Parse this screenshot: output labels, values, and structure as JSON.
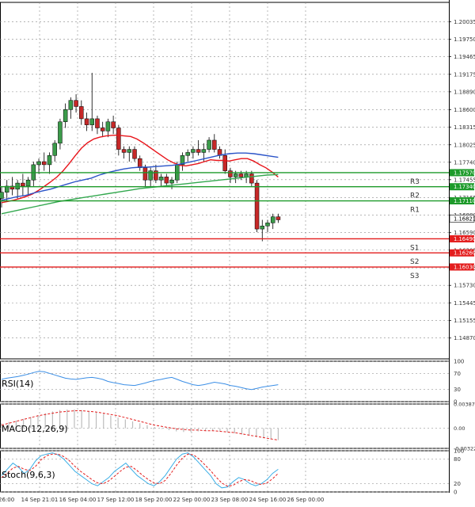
{
  "chart_data": [
    {
      "type": "candlestick",
      "title": "",
      "ylim": [
        1.1453,
        1.2035
      ],
      "price_ticks": [
        "1.20035",
        "1.19750",
        "1.19465",
        "1.19175",
        "1.18890",
        "1.18600",
        "1.18315",
        "1.18025",
        "1.17740",
        "1.17455",
        "1.17165",
        "1.16880",
        "1.16590",
        "1.16305",
        "1.16015",
        "1.15730",
        "1.15445",
        "1.15155",
        "1.14870"
      ],
      "x_labels": [
        "26:00",
        "14 Sep 21:01",
        "16 Sep 04:00",
        "17 Sep 12:00",
        "18 Sep 20:00",
        "22 Sep 00:00",
        "23 Sep 08:00",
        "24 Sep 16:00",
        "26 Sep 00:00"
      ],
      "candles": [
        [
          1.1715,
          1.1735,
          1.17,
          1.1725
        ],
        [
          1.1725,
          1.1745,
          1.171,
          1.1735
        ],
        [
          1.1735,
          1.175,
          1.172,
          1.173
        ],
        [
          1.173,
          1.1745,
          1.1715,
          1.174
        ],
        [
          1.174,
          1.1755,
          1.172,
          1.1735
        ],
        [
          1.1735,
          1.175,
          1.172,
          1.1745
        ],
        [
          1.1745,
          1.1775,
          1.1735,
          1.177
        ],
        [
          1.177,
          1.178,
          1.1755,
          1.1775
        ],
        [
          1.1775,
          1.179,
          1.176,
          1.177
        ],
        [
          1.177,
          1.179,
          1.1755,
          1.1785
        ],
        [
          1.1785,
          1.181,
          1.1775,
          1.1805
        ],
        [
          1.1805,
          1.1845,
          1.1795,
          1.184
        ],
        [
          1.184,
          1.187,
          1.183,
          1.186
        ],
        [
          1.186,
          1.188,
          1.1845,
          1.1875
        ],
        [
          1.1875,
          1.1885,
          1.1855,
          1.1865
        ],
        [
          1.1865,
          1.1875,
          1.1835,
          1.1845
        ],
        [
          1.1845,
          1.1855,
          1.1825,
          1.1835
        ],
        [
          1.1835,
          1.192,
          1.1825,
          1.1845
        ],
        [
          1.1845,
          1.185,
          1.182,
          1.183
        ],
        [
          1.183,
          1.184,
          1.1815,
          1.1825
        ],
        [
          1.1825,
          1.1845,
          1.1815,
          1.184
        ],
        [
          1.184,
          1.185,
          1.182,
          1.183
        ],
        [
          1.183,
          1.1835,
          1.1785,
          1.1795
        ],
        [
          1.1795,
          1.18,
          1.178,
          1.179
        ],
        [
          1.179,
          1.18,
          1.1775,
          1.1795
        ],
        [
          1.1795,
          1.18,
          1.1775,
          1.178
        ],
        [
          1.178,
          1.1785,
          1.176,
          1.1765
        ],
        [
          1.1765,
          1.177,
          1.1735,
          1.1745
        ],
        [
          1.1745,
          1.1765,
          1.1735,
          1.176
        ],
        [
          1.176,
          1.177,
          1.174,
          1.1745
        ],
        [
          1.1745,
          1.1755,
          1.1735,
          1.175
        ],
        [
          1.175,
          1.1755,
          1.1735,
          1.174
        ],
        [
          1.174,
          1.175,
          1.173,
          1.1745
        ],
        [
          1.1745,
          1.1775,
          1.174,
          1.177
        ],
        [
          1.177,
          1.179,
          1.176,
          1.1785
        ],
        [
          1.1785,
          1.1795,
          1.1775,
          1.179
        ],
        [
          1.179,
          1.18,
          1.178,
          1.1795
        ],
        [
          1.1795,
          1.181,
          1.1785,
          1.179
        ],
        [
          1.179,
          1.1805,
          1.1775,
          1.1795
        ],
        [
          1.1795,
          1.1815,
          1.179,
          1.181
        ],
        [
          1.181,
          1.182,
          1.179,
          1.1795
        ],
        [
          1.1795,
          1.18,
          1.178,
          1.1785
        ],
        [
          1.1785,
          1.1795,
          1.1755,
          1.176
        ],
        [
          1.176,
          1.1765,
          1.174,
          1.175
        ],
        [
          1.175,
          1.176,
          1.174,
          1.1755
        ],
        [
          1.1755,
          1.176,
          1.1745,
          1.175
        ],
        [
          1.175,
          1.176,
          1.174,
          1.1755
        ],
        [
          1.1755,
          1.176,
          1.1735,
          1.174
        ],
        [
          1.174,
          1.1745,
          1.166,
          1.1665
        ],
        [
          1.1665,
          1.168,
          1.1645,
          1.167
        ],
        [
          1.167,
          1.168,
          1.166,
          1.1675
        ],
        [
          1.1675,
          1.169,
          1.1665,
          1.1685
        ],
        [
          1.1685,
          1.169,
          1.1675,
          1.168
        ]
      ],
      "series": [
        {
          "name": "",
          "color": "#e8141a",
          "values": [
            1.1708,
            1.171,
            1.1712,
            1.1715,
            1.1718,
            1.1722,
            1.1728,
            1.1735,
            1.1742,
            1.175,
            1.176,
            1.1772,
            1.1785,
            1.1797,
            1.1806,
            1.1812,
            1.1815,
            1.1817,
            1.1818,
            1.1818,
            1.1817,
            1.1816,
            1.1812,
            1.1806,
            1.1799,
            1.1792,
            1.1785,
            1.1778,
            1.1773,
            1.1769,
            1.1768,
            1.177,
            1.1772,
            1.1775,
            1.1778,
            1.1777,
            1.1777,
            1.1776,
            1.1778,
            1.178,
            1.178,
            1.1776,
            1.177,
            1.1765,
            1.1758,
            1.175
          ]
        },
        {
          "name": "",
          "color": "#2b54c8",
          "values": [
            1.1712,
            1.1715,
            1.1718,
            1.172,
            1.1724,
            1.1727,
            1.173,
            1.1734,
            1.1738,
            1.1742,
            1.1745,
            1.1748,
            1.1753,
            1.1757,
            1.176,
            1.1763,
            1.1765,
            1.1766,
            1.1766,
            1.1767,
            1.1768,
            1.1769,
            1.1771,
            1.1774,
            1.1777,
            1.178,
            1.1783,
            1.1786,
            1.1788,
            1.1789,
            1.1789,
            1.1788,
            1.1786,
            1.1784,
            1.1782
          ]
        },
        {
          "name": "",
          "color": "#33a84f",
          "values": [
            1.169,
            1.1694,
            1.1698,
            1.1702,
            1.1706,
            1.171,
            1.1713,
            1.1716,
            1.1719,
            1.1722,
            1.1725,
            1.1728,
            1.1731,
            1.1733,
            1.1735,
            1.1737,
            1.1739,
            1.1741,
            1.1743,
            1.1745,
            1.1747,
            1.1749,
            1.1751,
            1.1753,
            1.1754
          ]
        }
      ],
      "levels": [
        {
          "name": "R3",
          "value": 1.1757,
          "label": "1.17570",
          "color": "#1d9a2a"
        },
        {
          "name": "R2",
          "value": 1.1734,
          "label": "1.17340",
          "color": "#1d9a2a"
        },
        {
          "name": "R1",
          "value": 1.1711,
          "label": "1.17110",
          "color": "#1d9a2a"
        },
        {
          "name": "S1",
          "value": 1.1649,
          "label": "1.16490",
          "color": "#e31d1d"
        },
        {
          "name": "S2",
          "value": 1.1626,
          "label": "1.16260",
          "color": "#e31d1d"
        },
        {
          "name": "S3",
          "value": 1.1603,
          "label": "1.16030",
          "color": "#e31d1d"
        }
      ],
      "current_price": {
        "value": 1.16821,
        "label": "1.16821"
      }
    },
    {
      "type": "line",
      "name": "RSI(14)",
      "ylim": [
        0,
        100
      ],
      "ticks": [
        "100",
        "70",
        "30",
        "0"
      ],
      "color": "#3a8ee6",
      "values": [
        55,
        58,
        60,
        62,
        65,
        68,
        72,
        75,
        74,
        70,
        66,
        62,
        58,
        56,
        55,
        57,
        59,
        60,
        58,
        55,
        50,
        47,
        45,
        42,
        41,
        40,
        43,
        46,
        50,
        53,
        55,
        58,
        60,
        55,
        50,
        46,
        42,
        40,
        42,
        45,
        48,
        46,
        44,
        40,
        38,
        35,
        32,
        30,
        33,
        36,
        38,
        40,
        42
      ]
    },
    {
      "type": "bar",
      "name": "MACD(12,26,9)",
      "ylim": [
        -0.003223,
        0.003875
      ],
      "ticks": [
        "0.003875",
        "0.00",
        "-0.003223"
      ],
      "bar_color": "#bcbcbc",
      "signal_color": "#e31d1d",
      "values": [
        0.0008,
        0.001,
        0.0012,
        0.0015,
        0.0018,
        0.0021,
        0.0024,
        0.0027,
        0.0029,
        0.003,
        0.003,
        0.0029,
        0.0027,
        0.0025,
        0.0023,
        0.002,
        0.0017,
        0.0014,
        0.0011,
        0.0008,
        0.0005,
        0.0002,
        -0.0001,
        -0.0003,
        -0.0005,
        -0.0006,
        -0.0006,
        -0.0005,
        -0.0004,
        -0.0004,
        -0.0005,
        -0.0006,
        -0.0008,
        -0.001,
        -0.0012,
        -0.0014,
        -0.0016,
        -0.0018,
        -0.0019
      ],
      "signal": [
        0.0005,
        0.0008,
        0.0011,
        0.0014,
        0.0017,
        0.002,
        0.0022,
        0.0024,
        0.0026,
        0.0027,
        0.0028,
        0.0028,
        0.0027,
        0.0026,
        0.0024,
        0.0022,
        0.002,
        0.0017,
        0.0014,
        0.0011,
        0.0008,
        0.0005,
        0.0003,
        0.0001,
        -0.0001,
        -0.0002,
        -0.0003,
        -0.0003,
        -0.0004,
        -0.0004,
        -0.0005,
        -0.0006,
        -0.0007,
        -0.0009,
        -0.0011,
        -0.0013,
        -0.0015,
        -0.0017,
        -0.0019
      ]
    },
    {
      "type": "line",
      "name": "Stoch(9,6,3)",
      "ylim": [
        0,
        100
      ],
      "ticks": [
        "100",
        "80",
        "20",
        "0"
      ],
      "k_color": "#3aaee6",
      "d_color": "#e31d1d",
      "k": [
        40,
        55,
        70,
        60,
        45,
        55,
        75,
        88,
        92,
        95,
        90,
        80,
        65,
        50,
        40,
        30,
        20,
        15,
        25,
        35,
        50,
        60,
        70,
        55,
        40,
        30,
        20,
        15,
        25,
        40,
        60,
        80,
        92,
        95,
        85,
        70,
        55,
        40,
        20,
        10,
        12,
        25,
        35,
        30,
        20,
        15,
        20,
        30,
        45,
        55
      ],
      "d": [
        35,
        45,
        58,
        62,
        55,
        52,
        62,
        78,
        88,
        92,
        92,
        86,
        76,
        62,
        50,
        40,
        30,
        22,
        20,
        27,
        38,
        50,
        60,
        62,
        52,
        40,
        30,
        22,
        20,
        28,
        45,
        65,
        82,
        92,
        90,
        80,
        66,
        52,
        36,
        22,
        14,
        16,
        25,
        30,
        28,
        22,
        18,
        22,
        32,
        45
      ]
    }
  ]
}
